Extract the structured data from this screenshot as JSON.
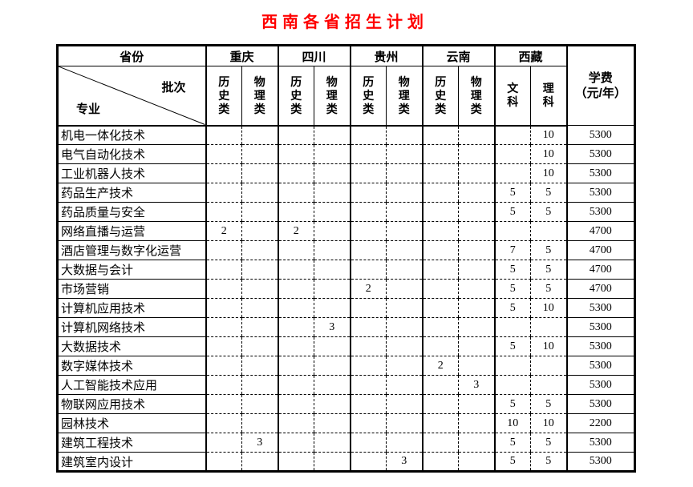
{
  "title": "西南各省招生计划",
  "colors": {
    "title": "#FF0000",
    "border": "#000000",
    "background": "#FFFFFF"
  },
  "table": {
    "corner": {
      "province_label": "省份",
      "batch_label": "批次",
      "major_label": "专业"
    },
    "province_groups": [
      {
        "name": "重庆",
        "subs": [
          "历史类",
          "物理类"
        ]
      },
      {
        "name": "四川",
        "subs": [
          "历史类",
          "物理类"
        ]
      },
      {
        "name": "贵州",
        "subs": [
          "历史类",
          "物理类"
        ]
      },
      {
        "name": "云南",
        "subs": [
          "历史类",
          "物理类"
        ]
      },
      {
        "name": "西藏",
        "subs": [
          "文科",
          "理科"
        ]
      }
    ],
    "tuition_header": {
      "line1": "学费",
      "line2": "（元/年）"
    },
    "value_columns": [
      "重庆历史类",
      "重庆物理类",
      "四川历史类",
      "四川物理类",
      "贵州历史类",
      "贵州物理类",
      "云南历史类",
      "云南物理类",
      "西藏文科",
      "西藏理科"
    ],
    "rows": [
      {
        "major": "机电一体化技术",
        "values": [
          "",
          "",
          "",
          "",
          "",
          "",
          "",
          "",
          "",
          "10"
        ],
        "tuition": "5300"
      },
      {
        "major": "电气自动化技术",
        "values": [
          "",
          "",
          "",
          "",
          "",
          "",
          "",
          "",
          "",
          "10"
        ],
        "tuition": "5300"
      },
      {
        "major": "工业机器人技术",
        "values": [
          "",
          "",
          "",
          "",
          "",
          "",
          "",
          "",
          "",
          "10"
        ],
        "tuition": "5300"
      },
      {
        "major": "药品生产技术",
        "values": [
          "",
          "",
          "",
          "",
          "",
          "",
          "",
          "",
          "5",
          "5"
        ],
        "tuition": "5300"
      },
      {
        "major": "药品质量与安全",
        "values": [
          "",
          "",
          "",
          "",
          "",
          "",
          "",
          "",
          "5",
          "5"
        ],
        "tuition": "5300"
      },
      {
        "major": "网络直播与运营",
        "values": [
          "2",
          "",
          "2",
          "",
          "",
          "",
          "",
          "",
          "",
          ""
        ],
        "tuition": "4700"
      },
      {
        "major": "酒店管理与数字化运营",
        "values": [
          "",
          "",
          "",
          "",
          "",
          "",
          "",
          "",
          "7",
          "5"
        ],
        "tuition": "4700"
      },
      {
        "major": "大数据与会计",
        "values": [
          "",
          "",
          "",
          "",
          "",
          "",
          "",
          "",
          "5",
          "5"
        ],
        "tuition": "4700"
      },
      {
        "major": "市场营销",
        "values": [
          "",
          "",
          "",
          "",
          "2",
          "",
          "",
          "",
          "5",
          "5"
        ],
        "tuition": "4700"
      },
      {
        "major": "计算机应用技术",
        "values": [
          "",
          "",
          "",
          "",
          "",
          "",
          "",
          "",
          "5",
          "10"
        ],
        "tuition": "5300"
      },
      {
        "major": "计算机网络技术",
        "values": [
          "",
          "",
          "",
          "3",
          "",
          "",
          "",
          "",
          "",
          ""
        ],
        "tuition": "5300"
      },
      {
        "major": "大数据技术",
        "values": [
          "",
          "",
          "",
          "",
          "",
          "",
          "",
          "",
          "5",
          "10"
        ],
        "tuition": "5300"
      },
      {
        "major": "数字媒体技术",
        "values": [
          "",
          "",
          "",
          "",
          "",
          "",
          "2",
          "",
          "",
          ""
        ],
        "tuition": "5300"
      },
      {
        "major": "人工智能技术应用",
        "values": [
          "",
          "",
          "",
          "",
          "",
          "",
          "",
          "3",
          "",
          ""
        ],
        "tuition": "5300"
      },
      {
        "major": "物联网应用技术",
        "values": [
          "",
          "",
          "",
          "",
          "",
          "",
          "",
          "",
          "5",
          "5"
        ],
        "tuition": "5300"
      },
      {
        "major": "园林技术",
        "values": [
          "",
          "",
          "",
          "",
          "",
          "",
          "",
          "",
          "10",
          "10"
        ],
        "tuition": "2200"
      },
      {
        "major": "建筑工程技术",
        "values": [
          "",
          "3",
          "",
          "",
          "",
          "",
          "",
          "",
          "5",
          "5"
        ],
        "tuition": "5300"
      },
      {
        "major": "建筑室内设计",
        "values": [
          "",
          "",
          "",
          "",
          "",
          "3",
          "",
          "",
          "5",
          "5"
        ],
        "tuition": "5300"
      }
    ]
  }
}
